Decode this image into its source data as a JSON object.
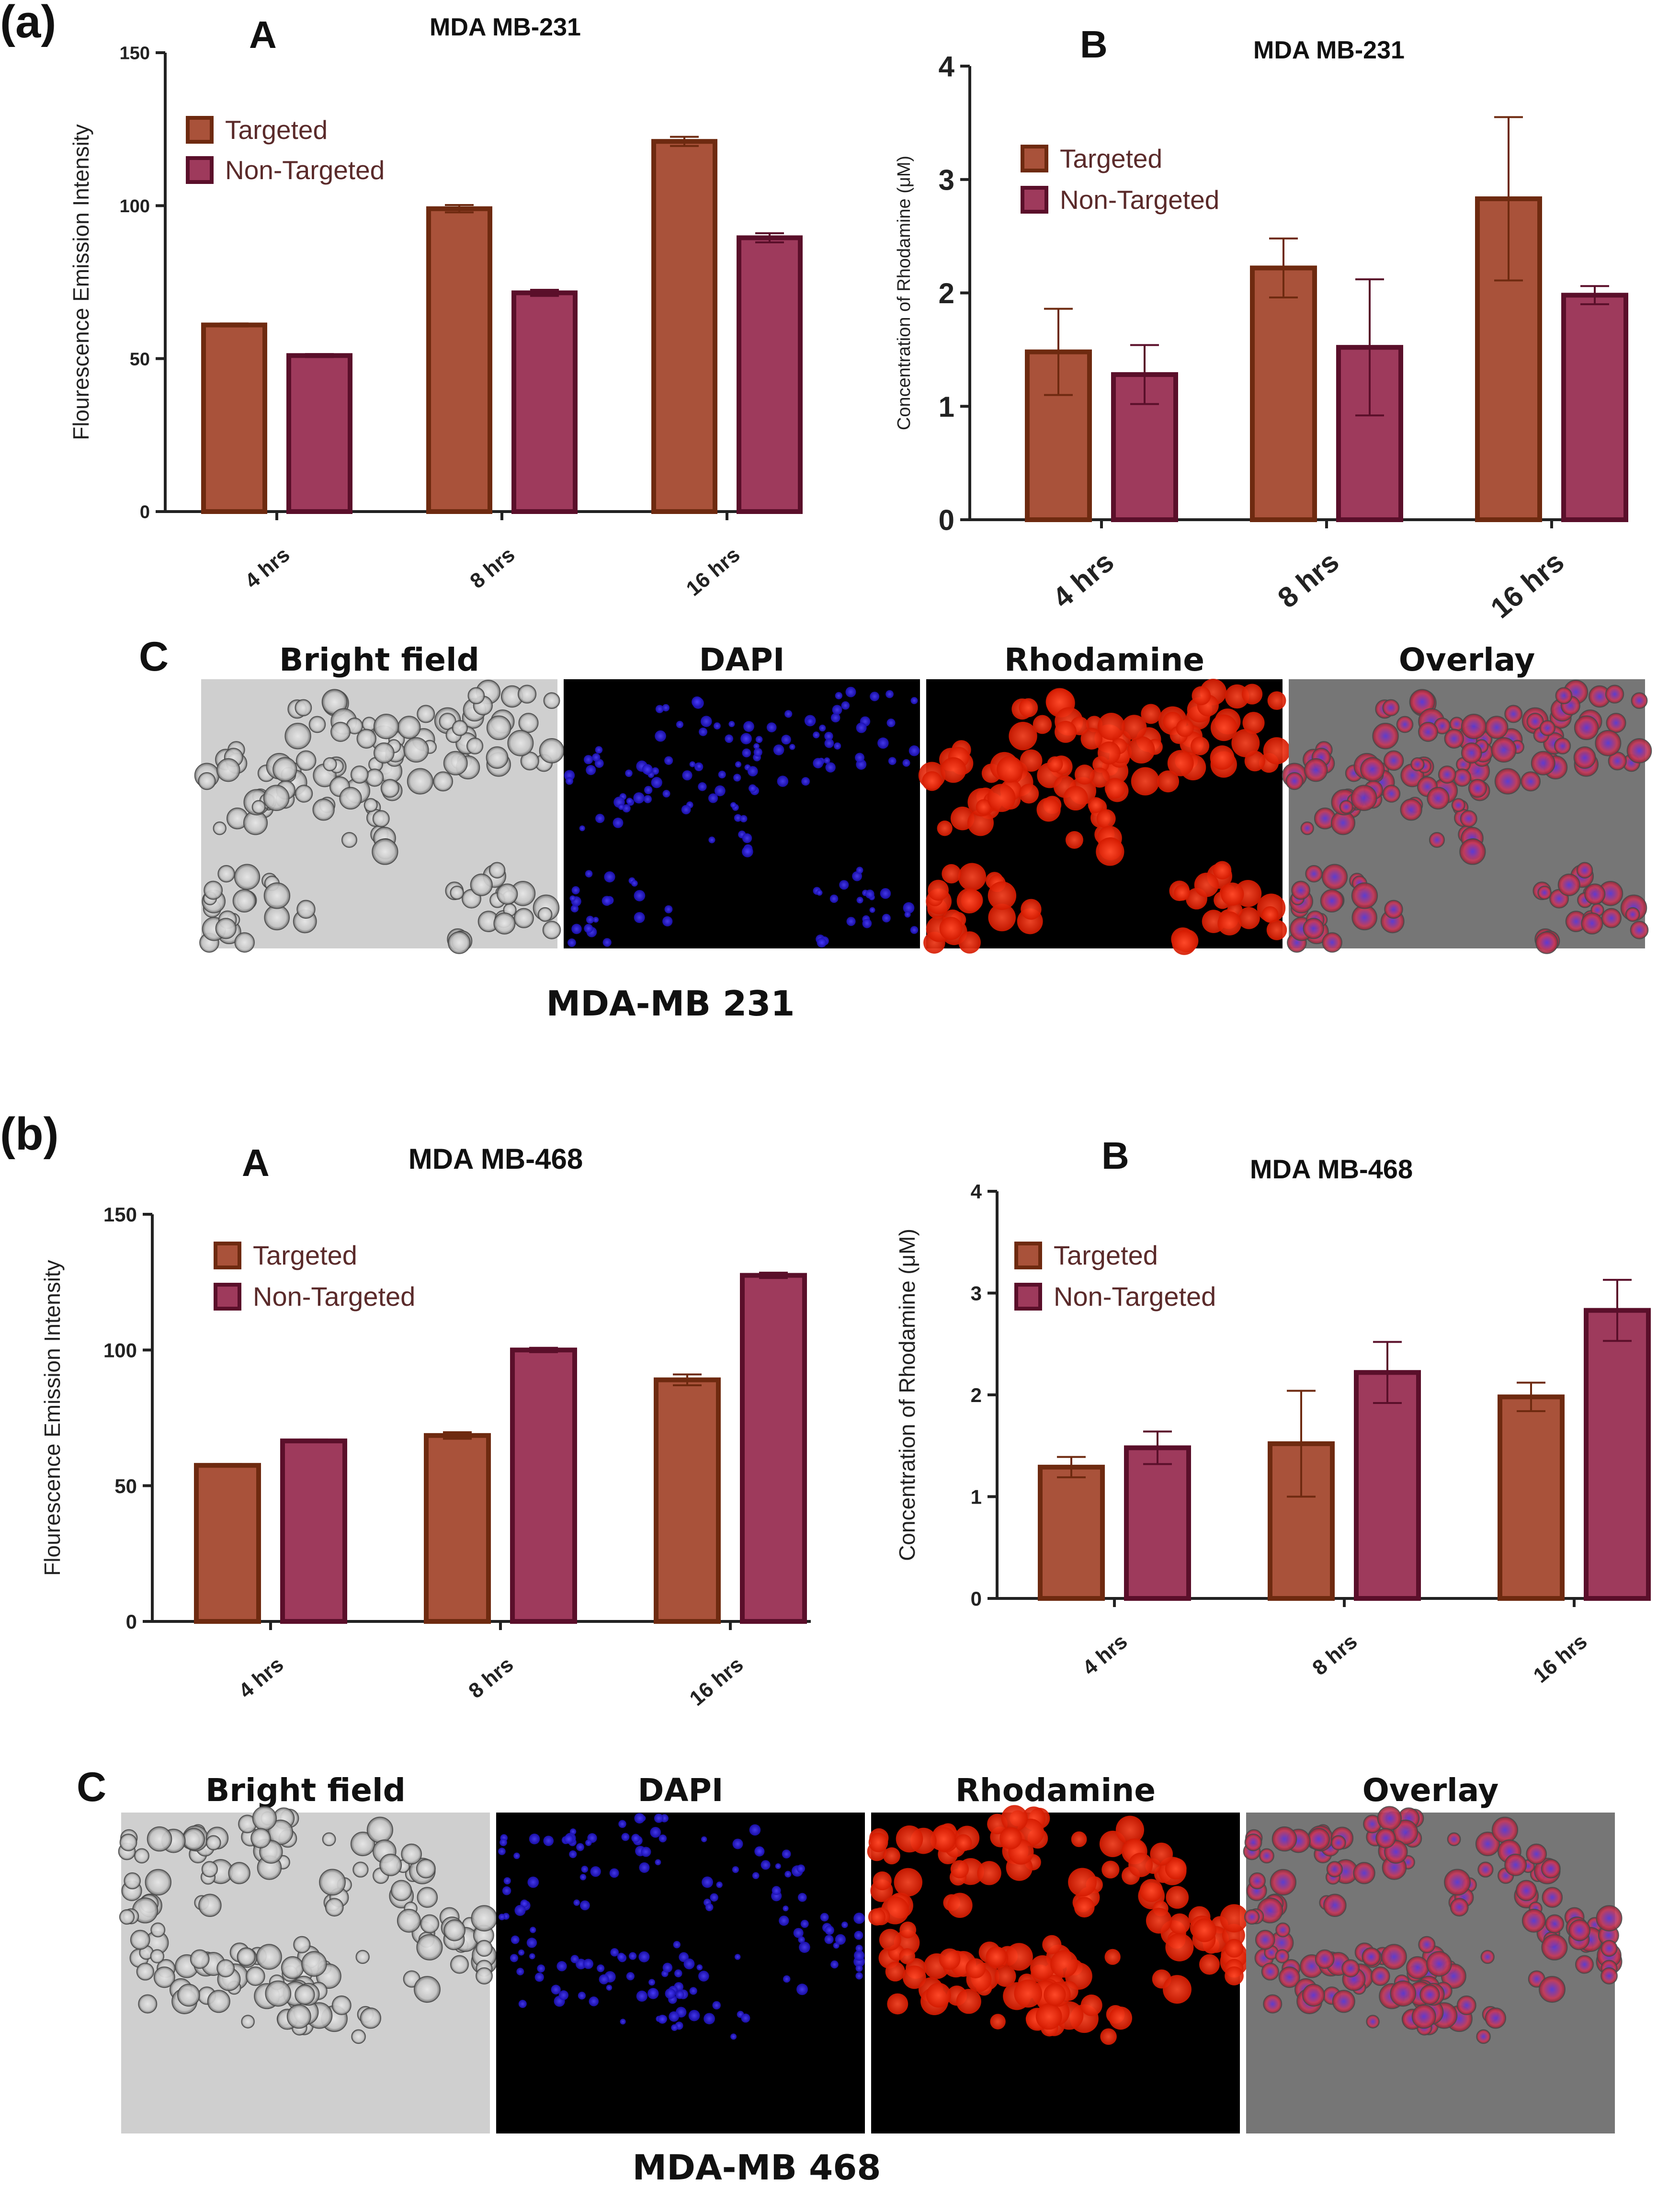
{
  "colors": {
    "targeted_fill": "#a9523a",
    "targeted_stroke": "#6e2a10",
    "nontargeted_fill": "#9e3a5c",
    "nontargeted_stroke": "#5a0f2a",
    "dapi": "#2a1bff",
    "rhodamine": "#ff2a10",
    "brightfield_bg": "#cfcfcf",
    "overlay_bg": "#767676"
  },
  "figure": {
    "panel_a": {
      "label": "(a)",
      "caption": "MDA-MB 231",
      "images_label": "C",
      "images": [
        "Bright field",
        "DAPI",
        "Rhodamine",
        "Overlay"
      ]
    },
    "panel_b": {
      "label": "(b)",
      "caption": "MDA-MB 468",
      "images_label": "C",
      "images": [
        "Bright field",
        "DAPI",
        "Rhodamine",
        "Overlay"
      ]
    }
  },
  "chart_data": [
    {
      "id": "a-A",
      "type": "bar",
      "panel_letter": "A",
      "title": "MDA MB-231",
      "ylabel": "Flourescence Emission Intensity",
      "xlabel": "",
      "ylim": [
        0,
        150
      ],
      "yticks": [
        "0",
        "50",
        "100",
        "150"
      ],
      "categories": [
        "4 hrs",
        "8 hrs",
        "16 hrs"
      ],
      "legend": [
        "Targeted",
        "Non-Targeted"
      ],
      "series": [
        {
          "name": "Targeted",
          "values": [
            61,
            99,
            121
          ],
          "errors": [
            0.5,
            1.2,
            1.5
          ]
        },
        {
          "name": "Non-Targeted",
          "values": [
            51,
            71.5,
            89.5
          ],
          "errors": [
            0.5,
            1.0,
            1.5
          ]
        }
      ]
    },
    {
      "id": "a-B",
      "type": "bar",
      "panel_letter": "B",
      "title": "MDA MB-231",
      "ylabel": "Concentration of Rhodamine (μM)",
      "xlabel": "",
      "ylim": [
        0,
        4
      ],
      "yticks": [
        "0",
        "1",
        "2",
        "3",
        "4"
      ],
      "categories": [
        "4 hrs",
        "8 hrs",
        "16 hrs"
      ],
      "legend": [
        "Targeted",
        "Non-Targeted"
      ],
      "series": [
        {
          "name": "Targeted",
          "values": [
            1.48,
            2.22,
            2.83
          ],
          "errors": [
            0.38,
            0.26,
            0.72
          ]
        },
        {
          "name": "Non-Targeted",
          "values": [
            1.28,
            1.52,
            1.98
          ],
          "errors": [
            0.26,
            0.6,
            0.08
          ]
        }
      ]
    },
    {
      "id": "b-A",
      "type": "bar",
      "panel_letter": "A",
      "title": "MDA MB-468",
      "ylabel": "Flourescence Emission Intensity",
      "xlabel": "",
      "ylim": [
        0,
        150
      ],
      "yticks": [
        "0",
        "50",
        "100",
        "150"
      ],
      "categories": [
        "4 hrs",
        "8 hrs",
        "16 hrs"
      ],
      "legend": [
        "Targeted",
        "Non-Targeted"
      ],
      "series": [
        {
          "name": "Targeted",
          "values": [
            57.5,
            68.5,
            89
          ],
          "errors": [
            0.5,
            1.2,
            2.0
          ]
        },
        {
          "name": "Non-Targeted",
          "values": [
            66.5,
            100,
            127.5
          ],
          "errors": [
            0.5,
            0.8,
            1.0
          ]
        }
      ]
    },
    {
      "id": "b-B",
      "type": "bar",
      "panel_letter": "B",
      "title": "MDA MB-468",
      "ylabel": "Concentration of Rhodamine (μM)",
      "xlabel": "",
      "ylim": [
        0,
        4
      ],
      "yticks": [
        "0",
        "1",
        "2",
        "3",
        "4"
      ],
      "categories": [
        "4 hrs",
        "8 hrs",
        "16 hrs"
      ],
      "legend": [
        "Targeted",
        "Non-Targeted"
      ],
      "series": [
        {
          "name": "Targeted",
          "values": [
            1.29,
            1.52,
            1.98
          ],
          "errors": [
            0.1,
            0.52,
            0.14
          ]
        },
        {
          "name": "Non-Targeted",
          "values": [
            1.48,
            2.22,
            2.83
          ],
          "errors": [
            0.16,
            0.3,
            0.3
          ]
        }
      ]
    }
  ]
}
